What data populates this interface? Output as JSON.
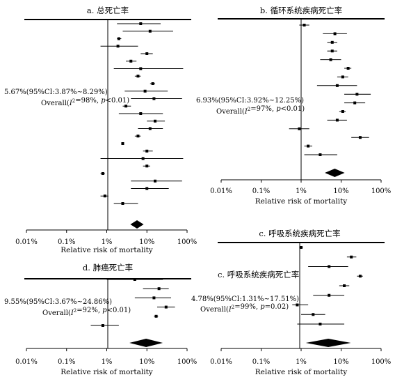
{
  "chart_data": [
    {
      "type": "forest",
      "title": "a. 总死亡率",
      "xlabel": "Relative risk of mortality",
      "x_scale": "log",
      "xlim": [
        "0.01%",
        "100%"
      ],
      "ticks": [
        "0.01%",
        "0.1%",
        "1%",
        "10%",
        "100%"
      ],
      "annotation": {
        "pooled": "5.67%(95%CI:3.87%~8.29%)",
        "overall": "Overall(I²=98%, p<0.01)"
      },
      "pooled": {
        "est": 5.67,
        "lo": 3.87,
        "hi": 8.29
      },
      "studies": [
        {
          "est": 7.0,
          "lo": 1.8,
          "hi": 22.0
        },
        {
          "est": 12.0,
          "lo": 2.5,
          "hi": 45.0
        },
        {
          "est": 2.0,
          "lo": 1.8,
          "hi": 2.3
        },
        {
          "est": 1.9,
          "lo": 0.7,
          "hi": 6.0
        },
        {
          "est": 10.0,
          "lo": 7.0,
          "hi": 14.0
        },
        {
          "est": 4.0,
          "lo": 3.0,
          "hi": 5.5
        },
        {
          "est": 7.0,
          "lo": 1.5,
          "hi": 80.0
        },
        {
          "est": 6.0,
          "lo": 5.0,
          "hi": 7.0
        },
        {
          "est": 14.0,
          "lo": 12.0,
          "hi": 16.0
        },
        {
          "est": 9.0,
          "lo": 2.8,
          "hi": 33.0
        },
        {
          "est": 15.0,
          "lo": 4.0,
          "hi": 75.0
        },
        {
          "est": 3.0,
          "lo": 2.5,
          "hi": 4.0
        },
        {
          "est": 7.0,
          "lo": 2.0,
          "hi": 25.0
        },
        {
          "est": 16.0,
          "lo": 10.0,
          "hi": 28.0
        },
        {
          "est": 12.0,
          "lo": 6.0,
          "hi": 25.0
        },
        {
          "est": 6.0,
          "lo": 5.0,
          "hi": 7.0
        },
        {
          "est": 2.5,
          "lo": 2.3,
          "hi": 2.7
        },
        {
          "est": 10.0,
          "lo": 8.0,
          "hi": 14.0
        },
        {
          "est": 8.0,
          "lo": 0.7,
          "hi": 80.0
        },
        {
          "est": 10.0,
          "lo": 8.0,
          "hi": 12.0
        },
        {
          "est": 0.8,
          "lo": 0.7,
          "hi": 0.9
        },
        {
          "est": 16.0,
          "lo": 4.0,
          "hi": 75.0
        },
        {
          "est": 10.0,
          "lo": 4.0,
          "hi": 35.0
        },
        {
          "est": 0.9,
          "lo": 0.7,
          "hi": 1.1
        },
        {
          "est": 2.5,
          "lo": 1.5,
          "hi": 6.0
        }
      ]
    },
    {
      "type": "forest",
      "title": "b. 循环系统疾病死亡率",
      "xlabel": "Relative risk of mortality",
      "x_scale": "log",
      "xlim": [
        "0.01%",
        "100%"
      ],
      "ticks": [
        "0.01%",
        "0.1%",
        "1%",
        "10%",
        "100%"
      ],
      "annotation": {
        "pooled": "6.93%(95%CI:3.92%~12.25%)",
        "overall": "Overall(I²=97%, p<0.01)"
      },
      "pooled": {
        "est": 6.93,
        "lo": 3.92,
        "hi": 12.25
      },
      "studies": [
        {
          "est": 1.2,
          "lo": 0.9,
          "hi": 1.6
        },
        {
          "est": 7.0,
          "lo": 3.5,
          "hi": 14.0
        },
        {
          "est": 6.0,
          "lo": 4.5,
          "hi": 8.0
        },
        {
          "est": 6.0,
          "lo": 4.5,
          "hi": 8.0
        },
        {
          "est": 5.5,
          "lo": 3.0,
          "hi": 10.0
        },
        {
          "est": 15.0,
          "lo": 12.0,
          "hi": 18.0
        },
        {
          "est": 11.0,
          "lo": 8.0,
          "hi": 15.0
        },
        {
          "est": 8.0,
          "lo": 2.5,
          "hi": 25.0
        },
        {
          "est": 25.0,
          "lo": 12.0,
          "hi": 55.0
        },
        {
          "est": 22.0,
          "lo": 12.0,
          "hi": 40.0
        },
        {
          "est": 11.0,
          "lo": 9.0,
          "hi": 13.0
        },
        {
          "est": 8.0,
          "lo": 4.5,
          "hi": 14.0
        },
        {
          "est": 0.9,
          "lo": 0.5,
          "hi": 1.6
        },
        {
          "est": 30.0,
          "lo": 18.0,
          "hi": 50.0
        },
        {
          "est": 1.5,
          "lo": 1.2,
          "hi": 1.9
        },
        {
          "est": 3.0,
          "lo": 1.2,
          "hi": 8.0
        }
      ]
    },
    {
      "type": "forest",
      "title": "c. 呼吸系统疾病死亡率",
      "xlabel": "Relative risk of mortality",
      "x_scale": "log",
      "xlim": [
        "0.01%",
        "100%"
      ],
      "ticks": [
        "0.01%",
        "0.1%",
        "1%",
        "10%",
        "100%"
      ],
      "annotation": {
        "title_repeat": "c. 呼吸系统疾病死亡率",
        "pooled": "4.78%(95%CI:1.31%~17.51%)",
        "overall": "Overall(I²=99%, p=0.02)"
      },
      "pooled": {
        "est": 4.78,
        "lo": 1.31,
        "hi": 17.51
      },
      "studies": [
        {
          "est": 1.0,
          "lo": 0.9,
          "hi": 1.1
        },
        {
          "est": 18.0,
          "lo": 14.0,
          "hi": 24.0
        },
        {
          "est": 5.0,
          "lo": 1.5,
          "hi": 15.0
        },
        {
          "est": 30.0,
          "lo": 25.0,
          "hi": 35.0
        },
        {
          "est": 12.0,
          "lo": 9.0,
          "hi": 16.0
        },
        {
          "est": 5.0,
          "lo": 2.0,
          "hi": 12.0
        },
        {
          "est": 0.8,
          "lo": 0.6,
          "hi": 1.5
        },
        {
          "est": 2.0,
          "lo": 1.0,
          "hi": 4.0
        },
        {
          "est": 3.0,
          "lo": 0.8,
          "hi": 12.0
        }
      ]
    },
    {
      "type": "forest",
      "title": "d. 肺癌死亡率",
      "xlabel": "Relative risk of mortality",
      "x_scale": "log",
      "xlim": [
        "0.01%",
        "100%"
      ],
      "ticks": [
        "0.01%",
        "0.1%",
        "1%",
        "10%",
        "100%"
      ],
      "annotation": {
        "pooled": "9.55%(95%CI:3.67%~24.86%)",
        "overall": "Overall(I²=92%, p<0.01)"
      },
      "pooled": {
        "est": 9.55,
        "lo": 3.67,
        "hi": 24.86
      },
      "studies": [
        {
          "est": 5.0,
          "lo": 1.0,
          "hi": 25.0
        },
        {
          "est": 20.0,
          "lo": 8.0,
          "hi": 35.0
        },
        {
          "est": 15.0,
          "lo": 5.0,
          "hi": 40.0
        },
        {
          "est": 30.0,
          "lo": 18.0,
          "hi": 50.0
        },
        {
          "est": 17.0,
          "lo": 15.0,
          "hi": 19.0
        },
        {
          "est": 0.8,
          "lo": 0.4,
          "hi": 2.0
        }
      ]
    }
  ]
}
